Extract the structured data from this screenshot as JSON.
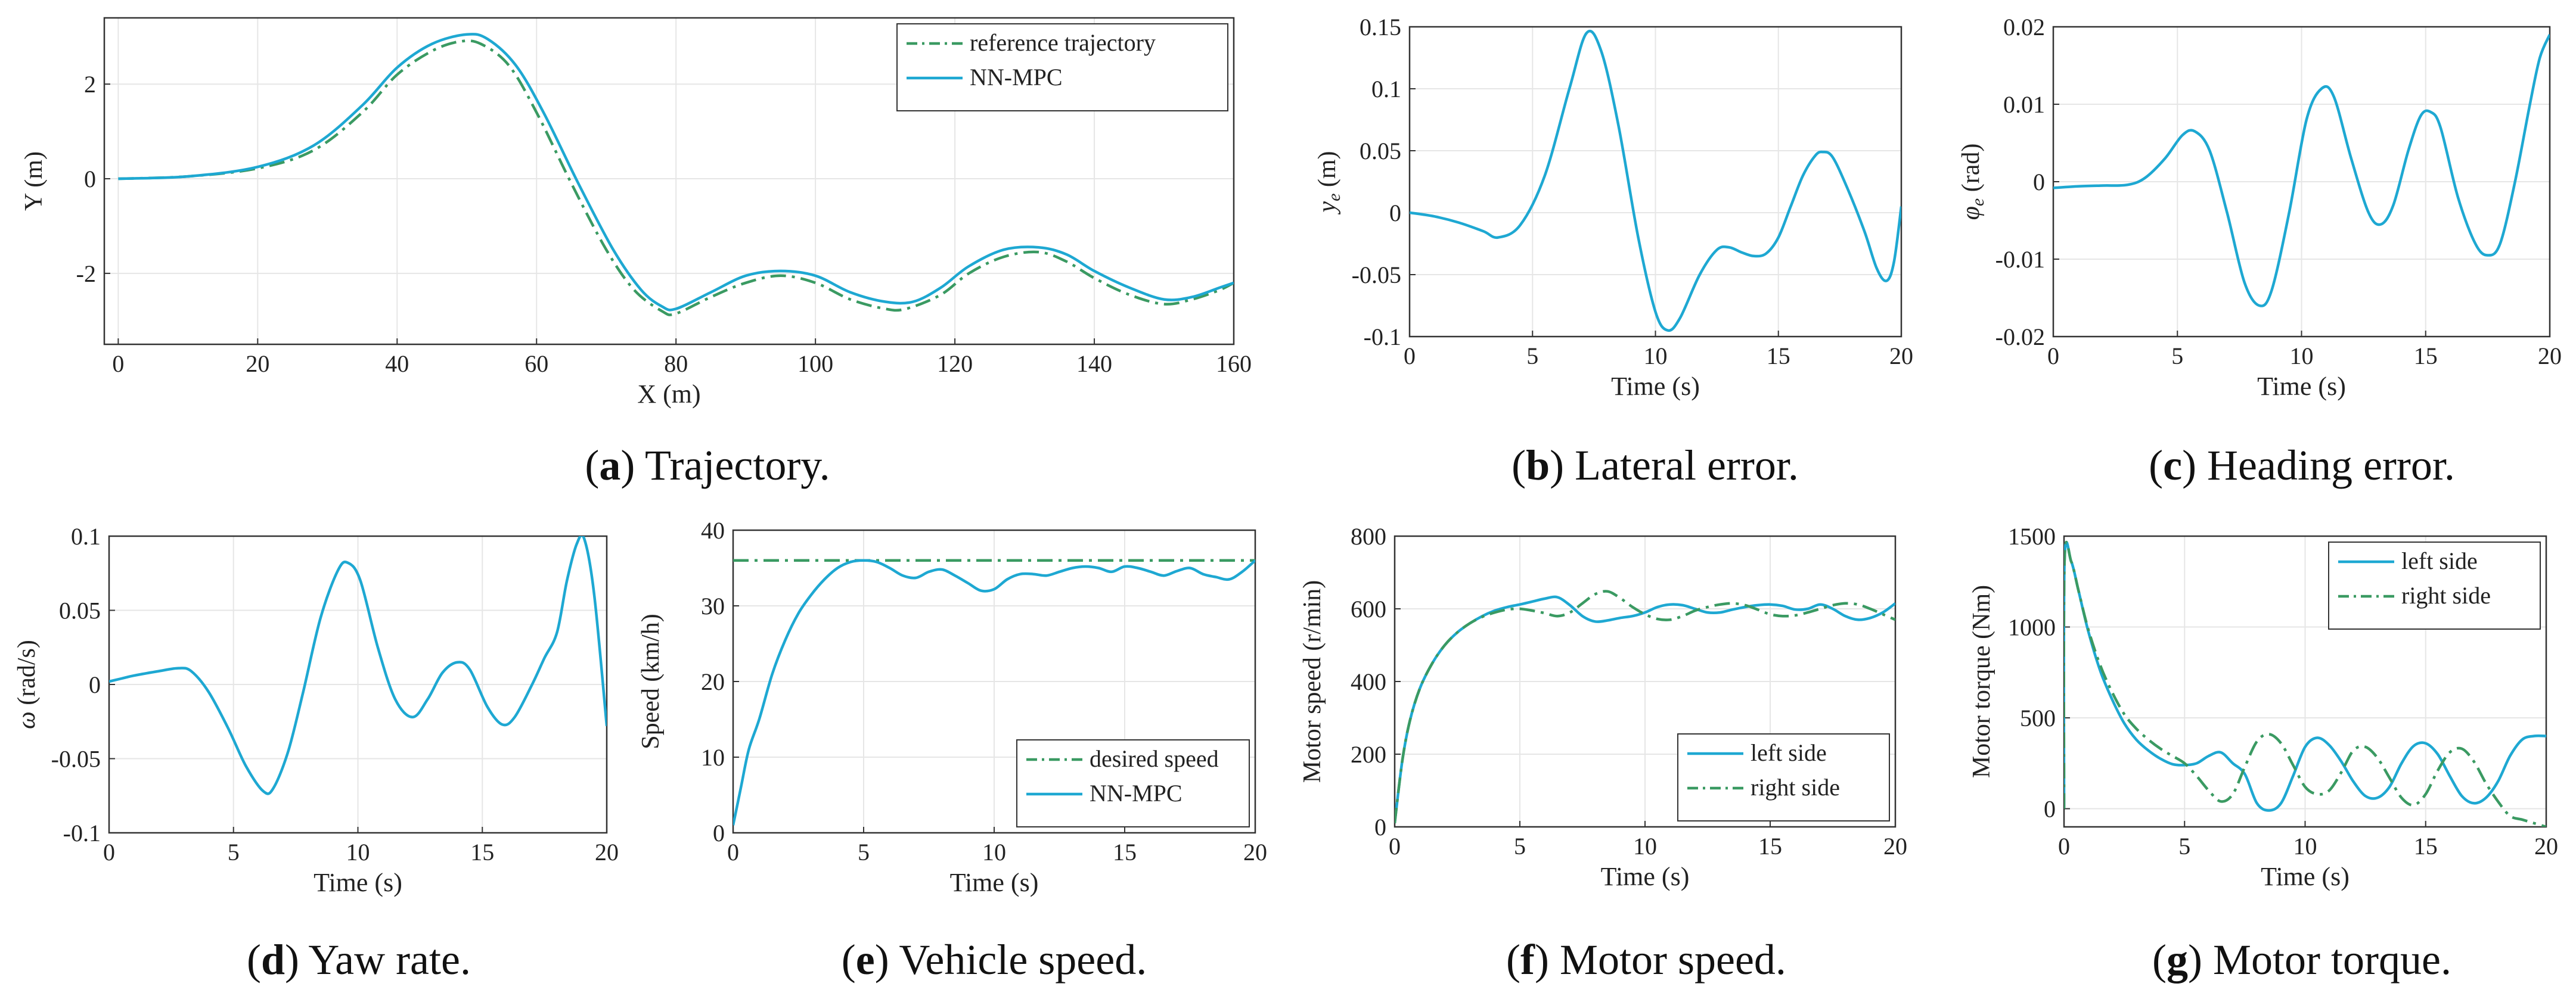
{
  "colors": {
    "nn_mpc": "#1ea8d2",
    "reference": "#3a9a62",
    "axis": "#333333",
    "grid": "#e6e6e6"
  },
  "chart_data": [
    {
      "id": "a",
      "type": "line",
      "caption_letter": "a",
      "caption_text": ") Trajectory.",
      "xlabel": "X (m)",
      "ylabel": "Y (m)",
      "xlim": [
        -2,
        160
      ],
      "ylim": [
        -3.5,
        3.4
      ],
      "xticks": [
        0,
        20,
        40,
        60,
        80,
        100,
        120,
        140,
        160
      ],
      "yticks": [
        -2,
        0,
        2
      ],
      "grid": true,
      "legend": "top-right",
      "series": [
        {
          "name": "reference trajectory",
          "style": "dashdot",
          "color": "#3a9a62",
          "x": [
            0,
            10,
            20,
            28,
            35,
            40,
            45,
            49,
            52,
            56,
            60,
            65,
            70,
            74,
            78,
            80,
            85,
            90,
            95,
            100,
            105,
            110,
            113,
            118,
            122,
            127,
            132,
            136,
            140,
            145,
            150,
            154,
            158,
            160
          ],
          "y": [
            0,
            0.05,
            0.22,
            0.6,
            1.4,
            2.2,
            2.7,
            2.9,
            2.85,
            2.4,
            1.4,
            -0.1,
            -1.5,
            -2.35,
            -2.8,
            -2.85,
            -2.5,
            -2.2,
            -2.05,
            -2.2,
            -2.55,
            -2.75,
            -2.75,
            -2.45,
            -2.0,
            -1.65,
            -1.55,
            -1.75,
            -2.1,
            -2.45,
            -2.65,
            -2.55,
            -2.35,
            -2.2
          ]
        },
        {
          "name": "NN-MPC",
          "style": "solid",
          "color": "#1ea8d2",
          "x": [
            0,
            10,
            20,
            28,
            35,
            40,
            45,
            50,
            53,
            57,
            61,
            66,
            71,
            75,
            78,
            80,
            85,
            90,
            95,
            100,
            105,
            110,
            114,
            118,
            122,
            127,
            132,
            136,
            140,
            145,
            150,
            154,
            158,
            160
          ],
          "y": [
            0,
            0.05,
            0.25,
            0.7,
            1.55,
            2.35,
            2.85,
            3.05,
            2.95,
            2.4,
            1.4,
            -0.1,
            -1.5,
            -2.35,
            -2.7,
            -2.75,
            -2.4,
            -2.05,
            -1.95,
            -2.05,
            -2.4,
            -2.6,
            -2.6,
            -2.3,
            -1.85,
            -1.5,
            -1.45,
            -1.6,
            -1.95,
            -2.3,
            -2.55,
            -2.5,
            -2.3,
            -2.2
          ]
        }
      ]
    },
    {
      "id": "b",
      "type": "line",
      "caption_letter": "b",
      "caption_text": ") Lateral error.",
      "xlabel": "Time (s)",
      "ylabel": "y_e (m)",
      "ylabel_symbol": "y",
      "ylabel_sub": "e",
      "ylabel_unit": " (m)",
      "xlim": [
        0,
        20
      ],
      "ylim": [
        -0.1,
        0.15
      ],
      "xticks": [
        0,
        5,
        10,
        15,
        20
      ],
      "yticks": [
        -0.1,
        -0.05,
        0,
        0.05,
        0.1,
        0.15
      ],
      "grid": true,
      "series": [
        {
          "name": "",
          "style": "solid",
          "color": "#1ea8d2",
          "x": [
            0,
            1,
            2,
            3,
            3.6,
            4.5,
            5.5,
            6.5,
            7.2,
            7.8,
            8.5,
            9.3,
            10,
            10.5,
            11,
            11.8,
            12.5,
            13,
            13.5,
            14,
            14.5,
            15,
            15.5,
            16,
            16.5,
            16.8,
            17.2,
            17.8,
            18.5,
            19,
            19.4,
            19.7,
            20
          ],
          "y": [
            0,
            -0.003,
            -0.008,
            -0.015,
            -0.02,
            -0.01,
            0.03,
            0.1,
            0.145,
            0.13,
            0.07,
            -0.02,
            -0.08,
            -0.095,
            -0.085,
            -0.05,
            -0.03,
            -0.028,
            -0.032,
            -0.035,
            -0.033,
            -0.02,
            0.005,
            0.03,
            0.046,
            0.049,
            0.045,
            0.02,
            -0.015,
            -0.045,
            -0.055,
            -0.04,
            0.005
          ]
        }
      ]
    },
    {
      "id": "c",
      "type": "line",
      "caption_letter": "c",
      "caption_text": ") Heading error.",
      "xlabel": "Time (s)",
      "ylabel": "φ_e (rad)",
      "ylabel_symbol": "φ",
      "ylabel_sub": "e",
      "ylabel_unit": " (rad)",
      "xlim": [
        0,
        20
      ],
      "ylim": [
        -0.02,
        0.02
      ],
      "xticks": [
        0,
        5,
        10,
        15,
        20
      ],
      "yticks": [
        -0.02,
        -0.01,
        0,
        0.01,
        0.02
      ],
      "grid": true,
      "series": [
        {
          "name": "",
          "style": "solid",
          "color": "#1ea8d2",
          "x": [
            0,
            1,
            2,
            3,
            3.7,
            4.5,
            5.2,
            5.7,
            6.3,
            7,
            7.7,
            8.3,
            8.8,
            9.5,
            10.2,
            10.8,
            11.3,
            12,
            12.7,
            13.2,
            13.7,
            14.3,
            14.8,
            15.2,
            15.6,
            16.3,
            17,
            17.5,
            18,
            18.6,
            19.2,
            19.6,
            20
          ],
          "y": [
            -0.0008,
            -0.0006,
            -0.0005,
            -0.0004,
            0.0005,
            0.003,
            0.006,
            0.0065,
            0.004,
            -0.004,
            -0.013,
            -0.016,
            -0.014,
            -0.004,
            0.008,
            0.012,
            0.011,
            0.003,
            -0.004,
            -0.0055,
            -0.003,
            0.004,
            0.0085,
            0.009,
            0.007,
            -0.002,
            -0.008,
            -0.0095,
            -0.008,
            0.0,
            0.01,
            0.016,
            0.019
          ]
        }
      ]
    },
    {
      "id": "d",
      "type": "line",
      "caption_letter": "d",
      "caption_text": ") Yaw rate.",
      "xlabel": "Time (s)",
      "ylabel": "ω (rad/s)",
      "ylabel_symbol": "ω",
      "ylabel_sub": "",
      "ylabel_unit": " (rad/s)",
      "xlim": [
        0,
        20
      ],
      "ylim": [
        -0.1,
        0.1
      ],
      "xticks": [
        0,
        5,
        10,
        15,
        20
      ],
      "yticks": [
        -0.1,
        -0.05,
        0,
        0.05,
        0.1
      ],
      "grid": true,
      "series": [
        {
          "name": "",
          "style": "solid",
          "color": "#1ea8d2",
          "x": [
            0,
            0.5,
            1,
            2,
            2.8,
            3.3,
            4,
            4.8,
            5.5,
            6.2,
            6.6,
            7.2,
            7.8,
            8.5,
            9.2,
            9.6,
            10.1,
            10.8,
            11.5,
            12.2,
            12.8,
            13.4,
            14,
            14.5,
            15.2,
            15.8,
            16.3,
            17,
            17.5,
            18,
            18.4,
            18.8,
            19.1,
            19.5,
            20
          ],
          "y": [
            0.002,
            0.004,
            0.006,
            0.009,
            0.011,
            0.009,
            -0.005,
            -0.03,
            -0.055,
            -0.072,
            -0.07,
            -0.045,
            -0.005,
            0.045,
            0.077,
            0.082,
            0.07,
            0.025,
            -0.01,
            -0.022,
            -0.01,
            0.008,
            0.015,
            0.01,
            -0.015,
            -0.027,
            -0.022,
            0.0,
            0.018,
            0.035,
            0.07,
            0.095,
            0.098,
            0.06,
            -0.028
          ]
        }
      ]
    },
    {
      "id": "e",
      "type": "line",
      "caption_letter": "e",
      "caption_text": ") Vehicle speed.",
      "xlabel": "Time (s)",
      "ylabel": "Speed (km/h)",
      "xlim": [
        0,
        20
      ],
      "ylim": [
        0,
        40
      ],
      "xticks": [
        0,
        5,
        10,
        15,
        20
      ],
      "yticks": [
        0,
        10,
        20,
        30,
        40
      ],
      "grid": true,
      "legend": "bottom-right",
      "series": [
        {
          "name": "desired speed",
          "style": "dashdot",
          "color": "#3a9a62",
          "x": [
            0,
            20
          ],
          "y": [
            36,
            36
          ]
        },
        {
          "name": "NN-MPC",
          "style": "solid",
          "color": "#1ea8d2",
          "x": [
            0,
            0.3,
            0.6,
            1,
            1.5,
            2,
            2.5,
            3,
            3.5,
            4,
            4.5,
            5,
            5.5,
            6,
            6.5,
            7,
            7.5,
            8,
            8.5,
            9,
            9.5,
            10,
            10.5,
            11,
            11.5,
            12,
            12.5,
            13,
            13.5,
            14,
            14.5,
            15,
            15.5,
            16,
            16.5,
            17,
            17.5,
            18,
            18.5,
            19,
            19.5,
            20
          ],
          "y": [
            1,
            6,
            11,
            15,
            21,
            25.5,
            29,
            31.5,
            33.5,
            35,
            35.8,
            36,
            35.8,
            35,
            34,
            33.7,
            34.5,
            34.8,
            34,
            33,
            32,
            32.2,
            33.5,
            34.2,
            34.2,
            34,
            34.5,
            35,
            35.2,
            35,
            34.5,
            35.2,
            35,
            34.5,
            34,
            34.6,
            35,
            34.2,
            33.8,
            33.5,
            34.5,
            36
          ]
        }
      ]
    },
    {
      "id": "f",
      "type": "line",
      "caption_letter": "f",
      "caption_text": ") Motor speed.",
      "xlabel": "Time (s)",
      "ylabel": "Motor speed (r/min)",
      "xlim": [
        0,
        20
      ],
      "ylim": [
        0,
        800
      ],
      "xticks": [
        0,
        5,
        10,
        15,
        20
      ],
      "yticks": [
        0,
        200,
        400,
        600,
        800
      ],
      "grid": true,
      "legend": "bottom-right",
      "series": [
        {
          "name": "left side",
          "style": "solid",
          "color": "#1ea8d2",
          "x": [
            0,
            0.3,
            0.6,
            1,
            1.5,
            2,
            2.5,
            3,
            3.5,
            4,
            4.5,
            5,
            5.5,
            6,
            6.5,
            7,
            7.5,
            8,
            8.5,
            9,
            9.5,
            10,
            10.5,
            11,
            11.5,
            12,
            12.5,
            13,
            13.5,
            14,
            14.5,
            15,
            15.5,
            16,
            16.5,
            17,
            17.5,
            18,
            18.5,
            19,
            19.5,
            20
          ],
          "y": [
            10,
            180,
            290,
            380,
            450,
            500,
            535,
            560,
            580,
            595,
            605,
            612,
            620,
            628,
            632,
            610,
            580,
            565,
            568,
            575,
            580,
            590,
            605,
            612,
            610,
            600,
            590,
            590,
            598,
            605,
            610,
            612,
            608,
            598,
            600,
            612,
            600,
            580,
            570,
            575,
            590,
            615
          ]
        },
        {
          "name": "right side",
          "style": "dashdot",
          "color": "#3a9a62",
          "x": [
            0,
            0.3,
            0.6,
            1,
            1.5,
            2,
            2.5,
            3,
            3.5,
            4,
            4.5,
            5,
            5.5,
            6,
            6.5,
            7,
            7.5,
            8,
            8.5,
            9,
            9.5,
            10,
            10.5,
            11,
            11.5,
            12,
            12.5,
            13,
            13.5,
            14,
            14.5,
            15,
            15.5,
            16,
            16.5,
            17,
            17.5,
            18,
            18.5,
            19,
            19.5,
            20
          ],
          "y": [
            10,
            180,
            290,
            380,
            450,
            500,
            535,
            560,
            578,
            590,
            598,
            600,
            595,
            588,
            580,
            590,
            615,
            640,
            648,
            630,
            605,
            585,
            572,
            570,
            580,
            595,
            605,
            612,
            615,
            610,
            598,
            585,
            580,
            582,
            590,
            600,
            610,
            615,
            612,
            600,
            585,
            570
          ]
        }
      ]
    },
    {
      "id": "g",
      "type": "line",
      "caption_letter": "g",
      "caption_text": ") Motor torque.",
      "xlabel": "Time (s)",
      "ylabel": "Motor torque (Nm)",
      "xlim": [
        0,
        20
      ],
      "ylim": [
        -100,
        1500
      ],
      "xticks": [
        0,
        5,
        10,
        15,
        20
      ],
      "yticks": [
        0,
        500,
        1000,
        1500
      ],
      "grid": true,
      "legend": "top-right",
      "series": [
        {
          "name": "left side",
          "style": "solid",
          "color": "#1ea8d2",
          "x": [
            0,
            0.02,
            0.3,
            0.6,
            1,
            1.5,
            2,
            2.5,
            3,
            3.5,
            4,
            4.5,
            5,
            5.5,
            6,
            6.5,
            7,
            7.5,
            8,
            8.5,
            9,
            9.5,
            10,
            10.5,
            11,
            11.5,
            12,
            12.5,
            13,
            13.5,
            14,
            14.5,
            15,
            15.5,
            16,
            16.5,
            17,
            17.5,
            18,
            18.5,
            19,
            19.5,
            20
          ],
          "y": [
            0,
            1360,
            1360,
            1200,
            980,
            760,
            600,
            470,
            380,
            320,
            275,
            245,
            240,
            250,
            290,
            310,
            250,
            190,
            30,
            -10,
            30,
            180,
            340,
            390,
            350,
            260,
            150,
            70,
            60,
            120,
            250,
            345,
            360,
            300,
            180,
            70,
            30,
            60,
            150,
            290,
            380,
            400,
            400
          ]
        },
        {
          "name": "right side",
          "style": "dashdot",
          "color": "#3a9a62",
          "x": [
            0,
            0.02,
            0.3,
            0.6,
            1,
            1.5,
            2,
            2.5,
            3,
            3.5,
            4,
            4.5,
            5,
            5.5,
            6,
            6.5,
            7,
            7.5,
            8,
            8.5,
            9,
            9.5,
            10,
            10.5,
            11,
            11.5,
            12,
            12.5,
            13,
            13.5,
            14,
            14.5,
            15,
            15.5,
            16,
            16.5,
            17,
            17.5,
            18,
            18.5,
            19,
            19.5,
            20
          ],
          "y": [
            0,
            1360,
            1360,
            1200,
            990,
            790,
            640,
            520,
            440,
            380,
            330,
            290,
            250,
            180,
            100,
            40,
            80,
            230,
            370,
            410,
            360,
            240,
            120,
            80,
            100,
            200,
            320,
            340,
            280,
            170,
            60,
            20,
            80,
            210,
            310,
            330,
            260,
            140,
            40,
            -40,
            -60,
            -80,
            -100
          ]
        }
      ]
    }
  ]
}
